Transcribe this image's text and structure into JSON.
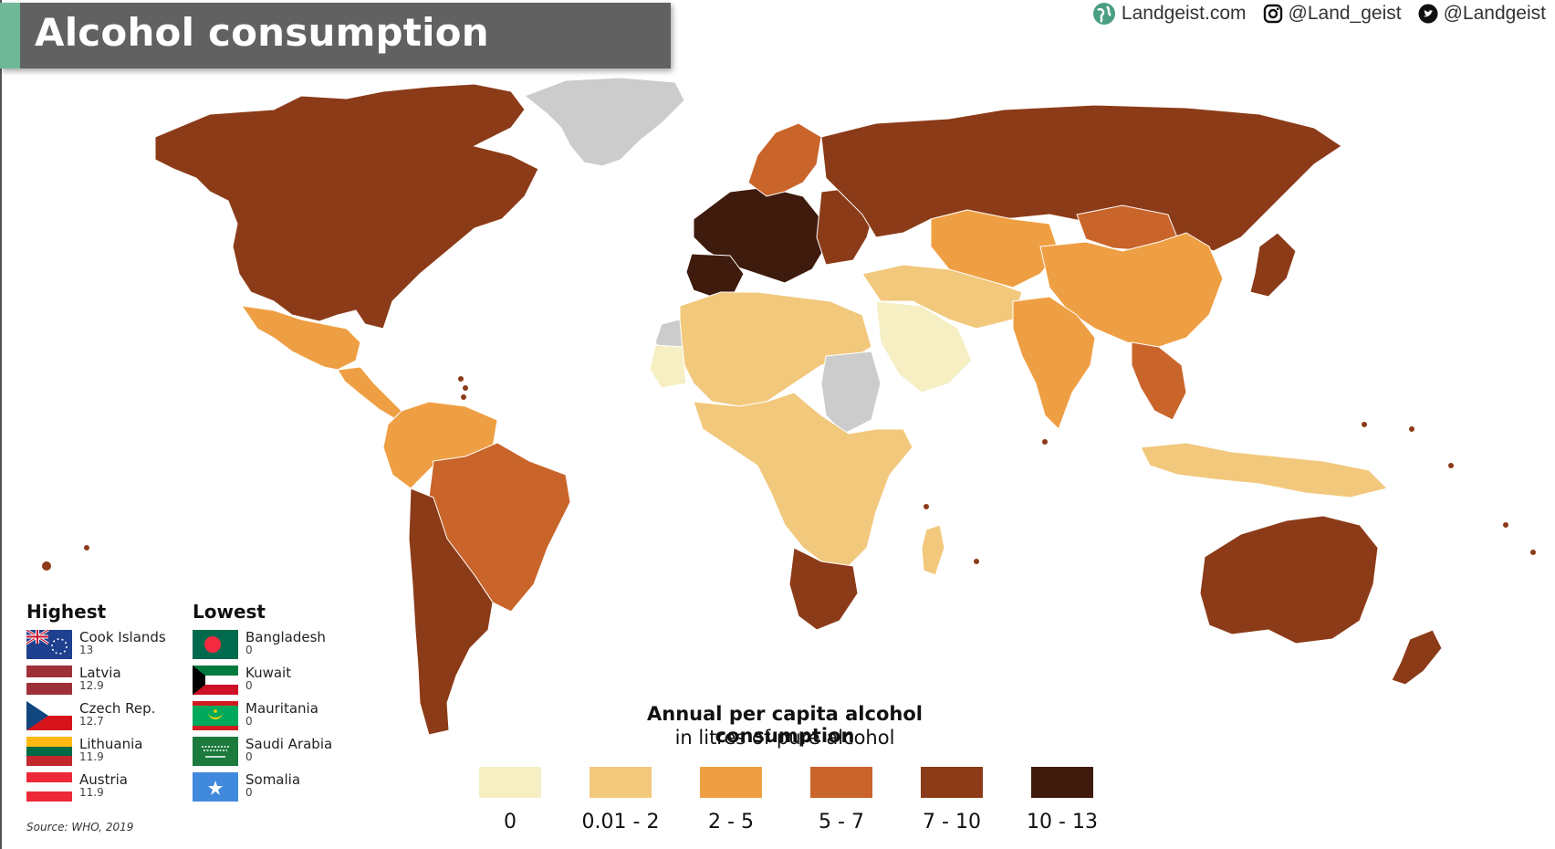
{
  "title": "Alcohol consumption",
  "social": {
    "website": "Landgeist.com",
    "instagram": "@Land_geist",
    "twitter": "@Landgeist"
  },
  "legend": {
    "title": "Annual per capita alcohol consumption",
    "subtitle": "in litres of pure alcohol",
    "bins": [
      {
        "label": "0",
        "color": "#f6efc4"
      },
      {
        "label": "0.01 - 2",
        "color": "#f2c87c"
      },
      {
        "label": "2 - 5",
        "color": "#ef9f43"
      },
      {
        "label": "5 - 7",
        "color": "#c9642a"
      },
      {
        "label": "7 - 10",
        "color": "#8c3b18"
      },
      {
        "label": "10 - 13",
        "color": "#3f1b0d"
      }
    ],
    "no_data_color": "#cccccc"
  },
  "highest": {
    "heading": "Highest",
    "items": [
      {
        "name": "Cook Islands",
        "value": "13",
        "flag": "cook-islands"
      },
      {
        "name": "Latvia",
        "value": "12.9",
        "flag": "latvia"
      },
      {
        "name": "Czech Rep.",
        "value": "12.7",
        "flag": "czech"
      },
      {
        "name": "Lithuania",
        "value": "11.9",
        "flag": "lithuania"
      },
      {
        "name": "Austria",
        "value": "11.9",
        "flag": "austria"
      }
    ]
  },
  "lowest": {
    "heading": "Lowest",
    "items": [
      {
        "name": "Bangladesh",
        "value": "0",
        "flag": "bangladesh"
      },
      {
        "name": "Kuwait",
        "value": "0",
        "flag": "kuwait"
      },
      {
        "name": "Mauritania",
        "value": "0",
        "flag": "mauritania"
      },
      {
        "name": "Saudi Arabia",
        "value": "0",
        "flag": "saudi-arabia"
      },
      {
        "name": "Somalia",
        "value": "0",
        "flag": "somalia"
      }
    ]
  },
  "source": "Source: WHO, 2019",
  "regions": [
    {
      "name": "north-america",
      "bin": 4
    },
    {
      "name": "greenland",
      "bin": -1
    },
    {
      "name": "mexico",
      "bin": 2
    },
    {
      "name": "central-america",
      "bin": 2
    },
    {
      "name": "south-america-north",
      "bin": 2
    },
    {
      "name": "brazil",
      "bin": 3
    },
    {
      "name": "southern-cone",
      "bin": 4
    },
    {
      "name": "western-europe",
      "bin": 5
    },
    {
      "name": "iberia",
      "bin": 5
    },
    {
      "name": "scandinavia",
      "bin": 3
    },
    {
      "name": "eastern-europe",
      "bin": 4
    },
    {
      "name": "russia",
      "bin": 4
    },
    {
      "name": "north-africa",
      "bin": 1
    },
    {
      "name": "western-sahara",
      "bin": -1
    },
    {
      "name": "mauritania",
      "bin": 0
    },
    {
      "name": "sudan",
      "bin": -1
    },
    {
      "name": "central-africa",
      "bin": 1
    },
    {
      "name": "southern-africa",
      "bin": 4
    },
    {
      "name": "arabia",
      "bin": 0
    },
    {
      "name": "middle-east",
      "bin": 1
    },
    {
      "name": "central-asia",
      "bin": 2
    },
    {
      "name": "mongolia",
      "bin": 3
    },
    {
      "name": "china",
      "bin": 2
    },
    {
      "name": "india",
      "bin": 2
    },
    {
      "name": "southeast-asia",
      "bin": 3
    },
    {
      "name": "indonesia",
      "bin": 1
    },
    {
      "name": "japan",
      "bin": 4
    },
    {
      "name": "australia",
      "bin": 4
    },
    {
      "name": "new-zealand",
      "bin": 4
    },
    {
      "name": "madagascar",
      "bin": 1
    }
  ]
}
